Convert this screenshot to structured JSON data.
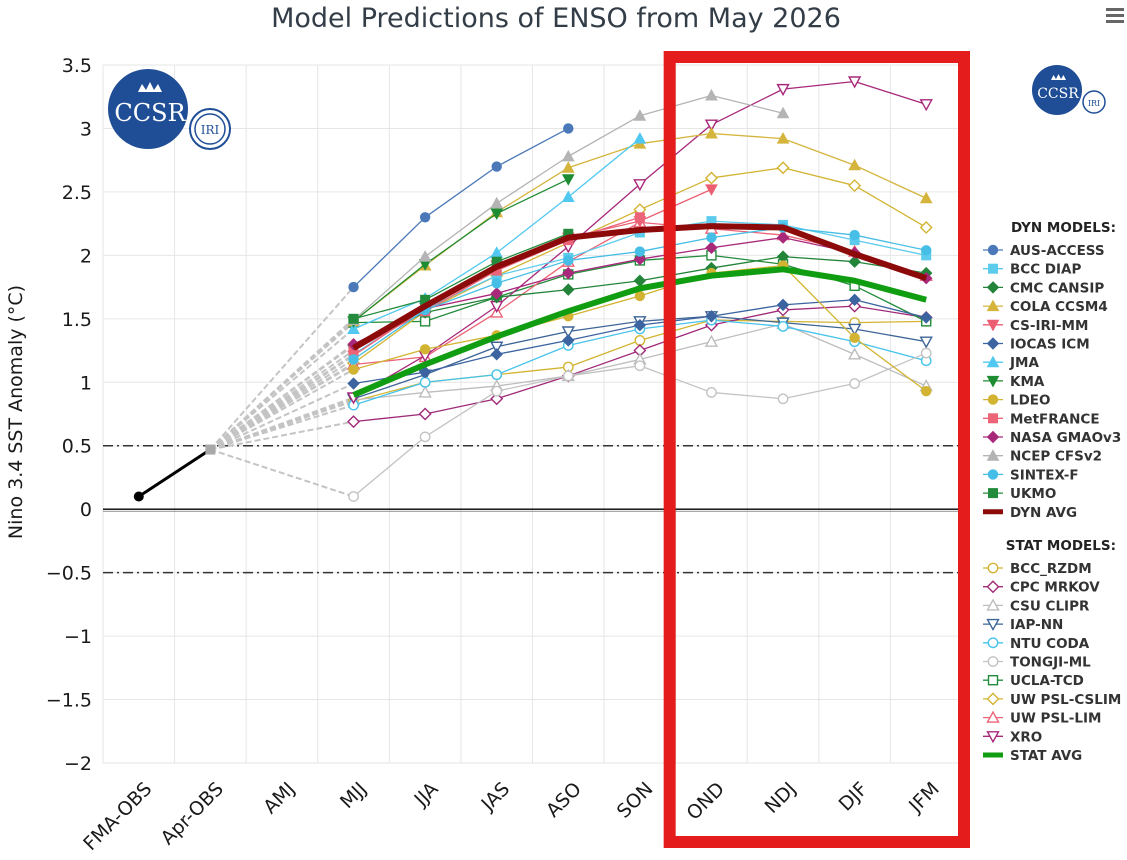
{
  "colors": {
    "grid": "#e6e6e6",
    "highlight": "#e41c1c",
    "logo": "#1f4e96"
  },
  "menu_icon": "hamburger-menu-icon",
  "logo": {
    "text_main": "CCSR",
    "text_sub": "IRI"
  },
  "chart_data": {
    "type": "line",
    "title": "Model Predictions of ENSO from May 2026",
    "ylabel": "Nino 3.4 SST Anomaly (°C)",
    "xlabel": "",
    "categories": [
      "FMA-OBS",
      "Apr-OBS",
      "AMJ",
      "MJJ",
      "JJA",
      "JAS",
      "ASO",
      "SON",
      "OND",
      "NDJ",
      "DJF",
      "JFM"
    ],
    "ylim": [
      -2,
      3.5
    ],
    "yticks": [
      -2,
      -1.5,
      -1,
      -0.5,
      0,
      0.5,
      1,
      1.5,
      2,
      2.5,
      3,
      3.5
    ],
    "ytick_labels": [
      "−2",
      "−1.5",
      "−1",
      "−0.5",
      "0",
      "0.5",
      "1",
      "1.5",
      "2",
      "2.5",
      "3",
      "3.5"
    ],
    "reference_lines": [
      0.5,
      -0.5
    ],
    "highlight_box": [
      "OND",
      "JFM"
    ],
    "observed": {
      "name": "",
      "values": [
        0.1,
        0.47
      ]
    },
    "legend_headers": {
      "dyn": "DYN MODELS:",
      "stat": "STAT MODELS:"
    },
    "dyn_models": [
      {
        "name": "AUS-ACCESS",
        "color": "#4a78b8",
        "marker": "circle",
        "fill": true,
        "values": [
          null,
          null,
          null,
          1.75,
          2.3,
          2.7,
          3.0,
          null,
          null,
          null,
          null,
          null
        ]
      },
      {
        "name": "BCC DIAP",
        "color": "#5ccbec",
        "marker": "square",
        "fill": true,
        "values": [
          null,
          null,
          null,
          1.22,
          1.58,
          1.84,
          1.98,
          2.18,
          2.27,
          2.24,
          2.12,
          2.0
        ]
      },
      {
        "name": "CMC CANSIP",
        "color": "#23843a",
        "marker": "diamond",
        "fill": true,
        "values": [
          null,
          null,
          null,
          1.29,
          1.55,
          1.67,
          1.73,
          1.8,
          1.9,
          1.99,
          1.95,
          1.86
        ]
      },
      {
        "name": "COLA CCSM4",
        "color": "#d4b43c",
        "marker": "triangle",
        "fill": true,
        "values": [
          null,
          null,
          null,
          1.48,
          1.92,
          2.34,
          2.69,
          2.88,
          2.96,
          2.92,
          2.71,
          2.45
        ]
      },
      {
        "name": "CS-IRI-MM",
        "color": "#ec5f72",
        "marker": "triangle-down",
        "fill": true,
        "values": [
          null,
          null,
          null,
          1.21,
          1.59,
          1.92,
          2.14,
          2.27,
          2.52,
          null,
          null,
          null
        ]
      },
      {
        "name": "IOCAS ICM",
        "color": "#3c64a0",
        "marker": "diamond",
        "fill": true,
        "values": [
          null,
          null,
          null,
          0.99,
          1.08,
          1.22,
          1.33,
          1.45,
          1.52,
          1.61,
          1.65,
          1.51
        ]
      },
      {
        "name": "JMA",
        "color": "#50c8f0",
        "marker": "triangle",
        "fill": true,
        "values": [
          null,
          null,
          null,
          1.42,
          1.66,
          2.02,
          2.46,
          2.92,
          null,
          null,
          null,
          null
        ]
      },
      {
        "name": "KMA",
        "color": "#1e8c32",
        "marker": "triangle-down",
        "fill": true,
        "values": [
          null,
          null,
          null,
          1.48,
          1.93,
          2.33,
          2.6,
          null,
          null,
          null,
          null,
          null
        ]
      },
      {
        "name": "LDEO",
        "color": "#d2b432",
        "marker": "circle",
        "fill": true,
        "values": [
          null,
          null,
          null,
          1.1,
          1.26,
          1.37,
          1.52,
          1.68,
          1.86,
          1.92,
          1.35,
          0.93
        ]
      },
      {
        "name": "MetFRANCE",
        "color": "#ec6478",
        "marker": "square",
        "fill": true,
        "values": [
          null,
          null,
          null,
          1.25,
          1.56,
          1.88,
          2.12,
          2.3,
          null,
          null,
          null,
          null
        ]
      },
      {
        "name": "NASA GMAOv3",
        "color": "#a8287a",
        "marker": "diamond",
        "fill": true,
        "values": [
          null,
          null,
          null,
          1.3,
          1.58,
          1.7,
          1.86,
          1.97,
          2.06,
          2.14,
          2.02,
          1.82
        ]
      },
      {
        "name": "NCEP CFSv2",
        "color": "#b4b4b4",
        "marker": "triangle",
        "fill": true,
        "values": [
          null,
          null,
          null,
          1.49,
          1.99,
          2.41,
          2.78,
          3.1,
          3.26,
          3.12,
          null,
          null
        ]
      },
      {
        "name": "SINTEX-F",
        "color": "#46bee6",
        "marker": "circle",
        "fill": true,
        "values": [
          null,
          null,
          null,
          1.18,
          1.57,
          1.78,
          1.96,
          2.03,
          2.14,
          2.22,
          2.16,
          2.04
        ]
      },
      {
        "name": "UKMO",
        "color": "#238c3c",
        "marker": "square",
        "fill": true,
        "values": [
          null,
          null,
          null,
          1.5,
          1.65,
          1.95,
          2.17,
          null,
          null,
          null,
          null,
          null
        ]
      },
      {
        "name": "DYN AVG",
        "color": "#8c0a0a",
        "marker": "none",
        "width": 6,
        "values": [
          null,
          null,
          null,
          1.27,
          1.6,
          1.91,
          2.14,
          2.2,
          2.23,
          2.22,
          2.01,
          1.82
        ]
      }
    ],
    "stat_models": [
      {
        "name": "BCC_RZDM",
        "color": "#d2b432",
        "marker": "circle",
        "fill": false,
        "values": [
          null,
          null,
          null,
          0.85,
          1.0,
          1.06,
          1.12,
          1.33,
          1.49,
          1.48,
          1.47,
          1.48
        ]
      },
      {
        "name": "CPC MRKOV",
        "color": "#a02a78",
        "marker": "diamond",
        "fill": false,
        "values": [
          null,
          null,
          null,
          0.69,
          0.75,
          0.87,
          1.05,
          1.25,
          1.45,
          1.57,
          1.6,
          1.51
        ]
      },
      {
        "name": "CSU CLIPR",
        "color": "#bdbdbd",
        "marker": "triangle",
        "fill": false,
        "values": [
          null,
          null,
          null,
          0.86,
          0.92,
          0.97,
          1.05,
          1.18,
          1.32,
          1.46,
          1.22,
          0.97
        ]
      },
      {
        "name": "IAP-NN",
        "color": "#3c6496",
        "marker": "triangle-down",
        "fill": false,
        "values": [
          null,
          null,
          null,
          0.87,
          1.06,
          1.28,
          1.4,
          1.48,
          1.52,
          1.47,
          1.42,
          1.32
        ]
      },
      {
        "name": "NTU CODA",
        "color": "#46c3eb",
        "marker": "circle",
        "fill": false,
        "values": [
          null,
          null,
          null,
          0.82,
          1.0,
          1.06,
          1.29,
          1.42,
          1.49,
          1.44,
          1.32,
          1.17
        ]
      },
      {
        "name": "TONGJI-ML",
        "color": "#c3c3c3",
        "marker": "circle",
        "fill": false,
        "values": [
          null,
          null,
          null,
          0.1,
          0.57,
          0.93,
          1.05,
          1.13,
          0.92,
          0.87,
          0.99,
          1.23
        ]
      },
      {
        "name": "UCLA-TCD",
        "color": "#238c3c",
        "marker": "square",
        "fill": false,
        "values": [
          null,
          null,
          null,
          1.47,
          1.48,
          1.67,
          1.85,
          1.96,
          2.0,
          1.93,
          1.76,
          1.48
        ]
      },
      {
        "name": "UW PSL-CSLIM",
        "color": "#d2b432",
        "marker": "diamond",
        "fill": false,
        "values": [
          null,
          null,
          null,
          1.15,
          1.56,
          1.84,
          2.1,
          2.36,
          2.61,
          2.69,
          2.55,
          2.22
        ]
      },
      {
        "name": "UW PSL-LIM",
        "color": "#ec6478",
        "marker": "triangle",
        "fill": false,
        "values": [
          null,
          null,
          null,
          1.14,
          1.2,
          1.55,
          1.95,
          2.26,
          2.21,
          2.16,
          2.03,
          1.84
        ]
      },
      {
        "name": "XRO",
        "color": "#a8287a",
        "marker": "triangle-down",
        "fill": false,
        "values": [
          null,
          null,
          null,
          0.88,
          1.21,
          1.6,
          2.07,
          2.56,
          3.03,
          3.31,
          3.37,
          3.19
        ]
      },
      {
        "name": "STAT AVG",
        "color": "#119d11",
        "marker": "none",
        "width": 6,
        "values": [
          null,
          null,
          null,
          0.9,
          1.14,
          1.36,
          1.56,
          1.74,
          1.84,
          1.89,
          1.8,
          1.65
        ]
      }
    ]
  }
}
